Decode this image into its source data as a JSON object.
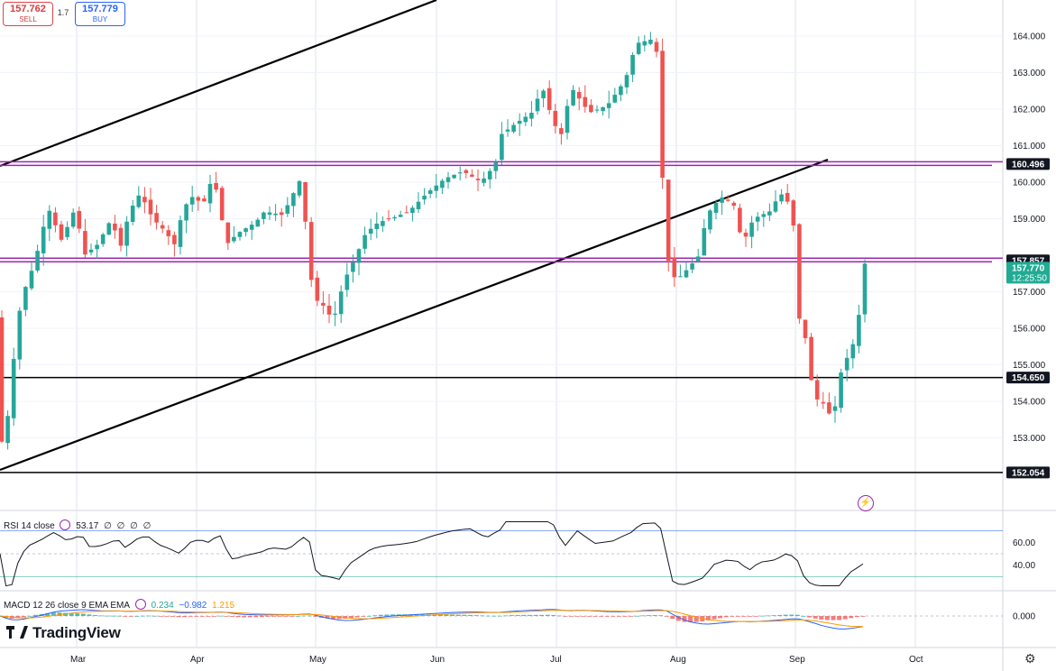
{
  "trade": {
    "sell_price": "157.762",
    "sell_label": "SELL",
    "spread": "1.7",
    "buy_price": "157.779",
    "buy_label": "BUY"
  },
  "brand": "TradingView",
  "chart_data": {
    "type": "candlestick",
    "price_axis": {
      "ticks": [
        "164.000",
        "163.000",
        "162.000",
        "161.000",
        "160.000",
        "159.000",
        "157.000",
        "156.000",
        "155.000",
        "154.000",
        "153.000"
      ],
      "range": [
        151.7,
        164.9
      ]
    },
    "time_axis": [
      "Mar",
      "Apr",
      "May",
      "Jun",
      "Jul",
      "Aug",
      "Sep",
      "Oct"
    ],
    "price_labels": [
      {
        "value": 160.496,
        "text": "160.496",
        "kind": "level",
        "color": "#131722"
      },
      {
        "value": 157.857,
        "text": "157.857",
        "kind": "level",
        "color": "#131722"
      },
      {
        "value": 157.77,
        "text": "157.770",
        "kind": "last",
        "color": "#22ab94",
        "subtext": "12:25:50"
      },
      {
        "value": 154.65,
        "text": "154.650",
        "kind": "level",
        "color": "#131722"
      },
      {
        "value": 152.054,
        "text": "152.054",
        "kind": "level",
        "color": "#131722"
      }
    ],
    "horizontal_levels": [
      {
        "value": 160.496,
        "color": "#9c27b0"
      },
      {
        "value": 157.857,
        "color": "#9c27b0"
      },
      {
        "value": 154.65,
        "color": "#000000"
      },
      {
        "value": 152.054,
        "color": "#000000"
      }
    ],
    "colors": {
      "up": "#26a69a",
      "down": "#ef5350",
      "grid": "#e0e3eb"
    },
    "rsi": {
      "label": "RSI 14 close",
      "value": "53.17",
      "extras": [
        "∅",
        "∅",
        "∅",
        "∅"
      ],
      "ticks": [
        "60.00",
        "40.00"
      ],
      "bands": [
        70,
        30
      ]
    },
    "macd": {
      "label": "MACD 12 26 close 9 EMA EMA",
      "values": [
        "0.234",
        "−0.982",
        "1.215"
      ],
      "ticks": [
        "0.000"
      ],
      "colors": {
        "macd": "#2962ff",
        "signal": "#ff9800"
      }
    }
  }
}
